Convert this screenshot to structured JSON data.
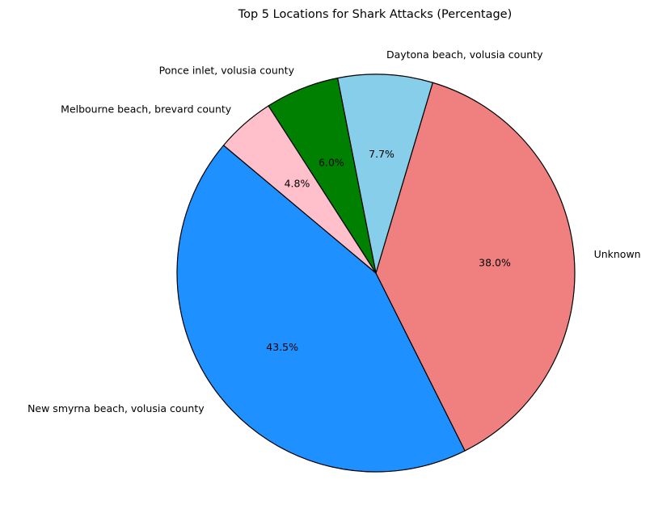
{
  "chart_data": {
    "type": "pie",
    "title": "Top 5 Locations for Shark Attacks (Percentage)",
    "start_angle_deg": 140,
    "direction": "counterclockwise",
    "edge_color": "#000000",
    "slices": [
      {
        "label": "New smyrna beach, volusia county",
        "value": 43.5,
        "pct_label": "43.5%",
        "color": "#1e90ff"
      },
      {
        "label": "Unknown",
        "value": 38.0,
        "pct_label": "38.0%",
        "color": "#f08080"
      },
      {
        "label": "Daytona beach, volusia county",
        "value": 7.7,
        "pct_label": "7.7%",
        "color": "#87ceeb"
      },
      {
        "label": "Ponce inlet, volusia county",
        "value": 6.0,
        "pct_label": "6.0%",
        "color": "#008000"
      },
      {
        "label": "Melbourne beach, brevard county",
        "value": 4.8,
        "pct_label": "4.8%",
        "color": "#ffc0cb"
      }
    ]
  }
}
